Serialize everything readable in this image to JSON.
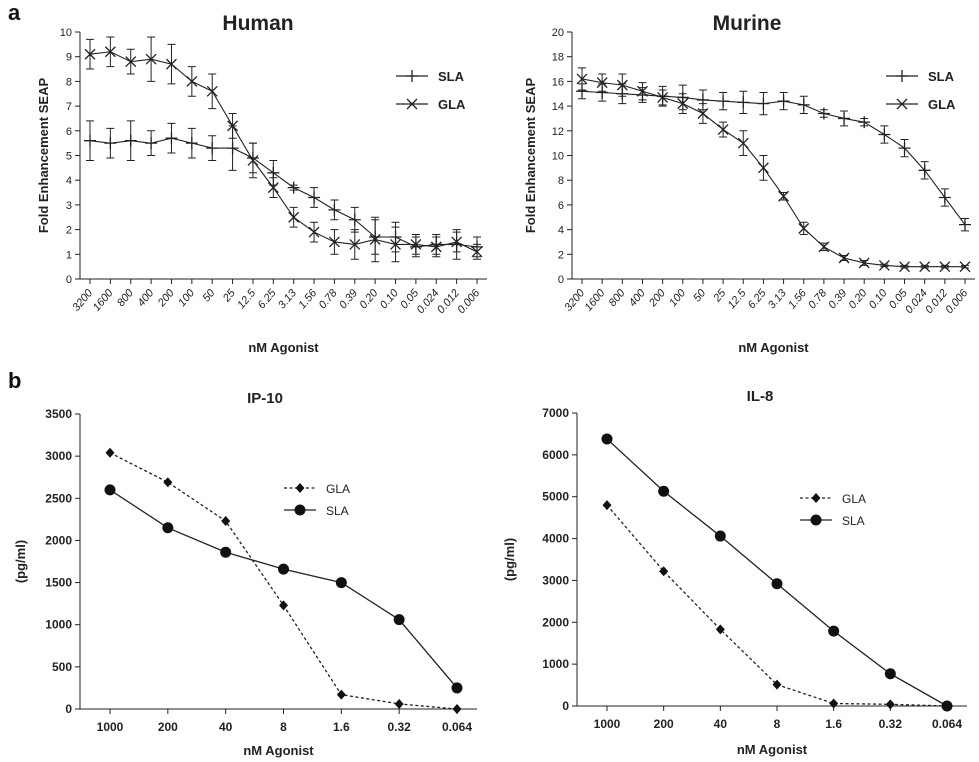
{
  "panels": {
    "a": "a",
    "b": "b"
  },
  "chart_data": [
    {
      "id": "human",
      "type": "line",
      "title": "Human",
      "xlabel": "nM Agonist",
      "ylabel": "Fold Enhancement SEAP",
      "ylim": [
        0,
        10
      ],
      "yticks": [
        "0",
        "1",
        "2",
        "3",
        "4",
        "5",
        "6",
        "7",
        "8",
        "9",
        "10"
      ],
      "categories": [
        "3200",
        "1600",
        "800",
        "400",
        "200",
        "100",
        "50",
        "25",
        "12.5",
        "6.25",
        "3.13",
        "1.56",
        "0.78",
        "0.39",
        "0.20",
        "0.10",
        "0.05",
        "0.024",
        "0.012",
        "0.006"
      ],
      "legend_position": "top-right",
      "series": [
        {
          "name": "SLA",
          "marker": "plus",
          "values": [
            5.6,
            5.5,
            5.6,
            5.5,
            5.7,
            5.5,
            5.3,
            5.3,
            4.9,
            4.3,
            3.7,
            3.3,
            2.8,
            2.4,
            1.7,
            1.7,
            1.3,
            1.4,
            1.4,
            1.3
          ],
          "errors": [
            0.8,
            0.6,
            0.8,
            0.5,
            0.6,
            0.6,
            0.5,
            0.9,
            0.6,
            0.5,
            0.1,
            0.4,
            0.4,
            0.5,
            0.7,
            0.6,
            0.4,
            0.4,
            0.6,
            0.4
          ]
        },
        {
          "name": "GLA",
          "marker": "cross",
          "values": [
            9.1,
            9.2,
            8.8,
            8.9,
            8.7,
            8.0,
            7.6,
            6.2,
            4.8,
            3.7,
            2.5,
            1.9,
            1.5,
            1.4,
            1.6,
            1.4,
            1.4,
            1.3,
            1.5,
            1.1
          ],
          "errors": [
            0.6,
            0.6,
            0.5,
            0.9,
            0.8,
            0.6,
            0.7,
            0.5,
            0.7,
            0.4,
            0.4,
            0.4,
            0.5,
            0.6,
            0.9,
            0.7,
            0.4,
            0.4,
            0.4,
            0.3
          ]
        }
      ]
    },
    {
      "id": "murine",
      "type": "line",
      "title": "Murine",
      "xlabel": "nM Agonist",
      "ylabel": "Fold Enhancement SEAP",
      "ylim": [
        0,
        20
      ],
      "yticks": [
        "0",
        "2",
        "4",
        "6",
        "8",
        "10",
        "12",
        "14",
        "16",
        "18",
        "20"
      ],
      "categories": [
        "3200",
        "1600",
        "800",
        "400",
        "200",
        "100",
        "50",
        "25",
        "12.5",
        "6.25",
        "3.13",
        "1.56",
        "0.78",
        "0.39",
        "0.20",
        "0.10",
        "0.05",
        "0.024",
        "0.012",
        "0.006"
      ],
      "legend_position": "top-right",
      "series": [
        {
          "name": "SLA",
          "marker": "plus",
          "values": [
            15.2,
            15.1,
            15.0,
            14.9,
            14.8,
            14.7,
            14.5,
            14.4,
            14.3,
            14.2,
            14.4,
            14.1,
            13.4,
            13.0,
            12.7,
            11.7,
            10.6,
            8.8,
            6.6,
            4.4
          ],
          "errors": [
            0.6,
            0.7,
            0.8,
            0.6,
            0.8,
            1.0,
            0.8,
            0.7,
            0.9,
            0.9,
            0.7,
            0.7,
            0.3,
            0.6,
            0.3,
            0.7,
            0.7,
            0.7,
            0.7,
            0.5
          ]
        },
        {
          "name": "GLA",
          "marker": "cross",
          "values": [
            16.2,
            15.9,
            15.7,
            15.2,
            14.7,
            14.2,
            13.4,
            12.1,
            11.0,
            9.0,
            6.7,
            4.1,
            2.6,
            1.7,
            1.3,
            1.1,
            1.0,
            1.0,
            1.0,
            1.0
          ],
          "errors": [
            0.9,
            0.7,
            0.9,
            0.7,
            0.6,
            0.8,
            0.8,
            0.6,
            1.0,
            1.0,
            0.3,
            0.5,
            0.3,
            0.2,
            0.2,
            0.1,
            0.1,
            0.1,
            0.1,
            0.1
          ]
        }
      ]
    },
    {
      "id": "ip10",
      "type": "line",
      "title": "IP-10",
      "xlabel": "nM Agonist",
      "ylabel": "(pg/ml)",
      "ylim": [
        0,
        3500
      ],
      "yticks": [
        "0",
        "500",
        "1000",
        "1500",
        "2000",
        "2500",
        "3000",
        "3500"
      ],
      "categories": [
        "1000",
        "200",
        "40",
        "8",
        "1.6",
        "0.32",
        "0.064"
      ],
      "legend_position": "top-right",
      "series": [
        {
          "name": "GLA",
          "marker": "diamond",
          "style": "dashed",
          "values": [
            3040,
            2690,
            2230,
            1230,
            170,
            60,
            0
          ]
        },
        {
          "name": "SLA",
          "marker": "circle",
          "style": "solid",
          "values": [
            2600,
            2150,
            1860,
            1660,
            1500,
            1060,
            250
          ]
        }
      ]
    },
    {
      "id": "il8",
      "type": "line",
      "title": "IL-8",
      "xlabel": "nM Agonist",
      "ylabel": "(pg/ml)",
      "ylim": [
        0,
        7000
      ],
      "yticks": [
        "0",
        "1000",
        "2000",
        "3000",
        "4000",
        "5000",
        "6000",
        "7000"
      ],
      "categories": [
        "1000",
        "200",
        "40",
        "8",
        "1.6",
        "0.32",
        "0.064"
      ],
      "legend_position": "top-right",
      "series": [
        {
          "name": "GLA",
          "marker": "diamond",
          "style": "dashed",
          "values": [
            4800,
            3220,
            1830,
            510,
            60,
            40,
            0
          ]
        },
        {
          "name": "SLA",
          "marker": "circle",
          "style": "solid",
          "values": [
            6380,
            5130,
            4060,
            2920,
            1790,
            770,
            0
          ]
        }
      ]
    }
  ]
}
